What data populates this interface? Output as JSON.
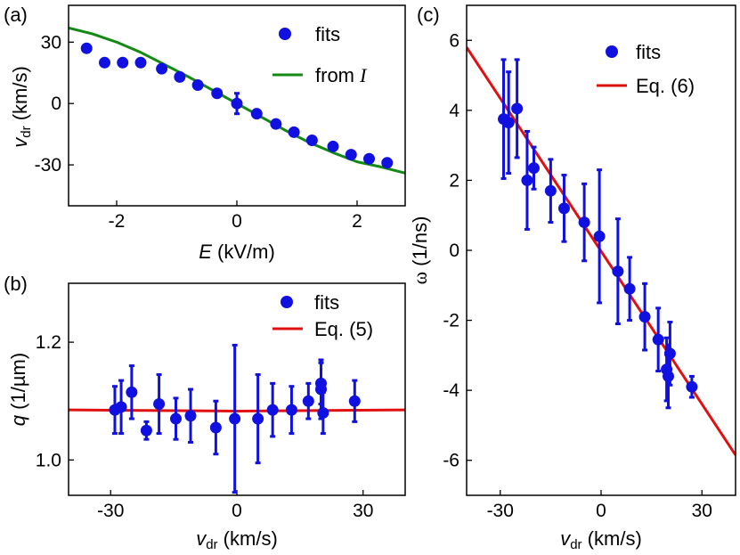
{
  "chart_data": [
    {
      "panel": "(a)",
      "type": "scatter",
      "xlabel_var": "E",
      "xlabel_unit": " (kV/m)",
      "ylabel_var": "v",
      "ylabel_sub": "dr",
      "ylabel_unit": " (km/s)",
      "xlim": [
        -2.8,
        2.8
      ],
      "ylim": [
        -50,
        48
      ],
      "xticks": [
        -2,
        0,
        2
      ],
      "yticks": [
        -30,
        0,
        30
      ],
      "series": [
        {
          "name": "fits",
          "kind": "points",
          "color": "#1010e0",
          "x": [
            -2.5,
            -2.2,
            -1.9,
            -1.6,
            -1.25,
            -0.95,
            -0.65,
            -0.33,
            0,
            0.33,
            0.65,
            0.95,
            1.25,
            1.6,
            1.9,
            2.2,
            2.5
          ],
          "y": [
            27,
            20,
            20,
            20,
            17,
            13,
            9,
            5,
            0,
            -5,
            -10,
            -14,
            -18,
            -21,
            -25,
            -27,
            -29
          ],
          "yerr": [
            0,
            0,
            0,
            0,
            0,
            0,
            0,
            0,
            5,
            0,
            0,
            0,
            0,
            0,
            0,
            0,
            0
          ]
        },
        {
          "name": "from ",
          "name_italic": "I",
          "kind": "line",
          "color": "#138a13",
          "x": [
            -2.8,
            -2.4,
            -2.0,
            -1.6,
            -1.2,
            -0.8,
            -0.4,
            0,
            0.4,
            0.8,
            1.2,
            1.6,
            2.0,
            2.4,
            2.8
          ],
          "y": [
            37,
            34,
            30,
            25,
            19,
            13,
            6.5,
            0,
            -6.5,
            -13,
            -19,
            -24,
            -28.5,
            -31,
            -34
          ]
        }
      ]
    },
    {
      "panel": "(b)",
      "type": "scatter",
      "xlabel_var": "v",
      "xlabel_sub": "dr",
      "xlabel_unit": " (km/s)",
      "ylabel_var": "q",
      "ylabel_unit": " (1/µm)",
      "xlim": [
        -40,
        40
      ],
      "ylim": [
        0.94,
        1.3
      ],
      "xticks": [
        -30,
        0,
        30
      ],
      "yticks": [
        1.0,
        1.2
      ],
      "ytick_labels": [
        "1.0",
        "1.2"
      ],
      "series": [
        {
          "name": "fits",
          "kind": "points",
          "color": "#1010e0",
          "x": [
            -29,
            -27.5,
            -25,
            -21.5,
            -18.5,
            -14.5,
            -11,
            -5,
            -0.5,
            5,
            8.5,
            13,
            17,
            20,
            20,
            20.5,
            28
          ],
          "y": [
            1.085,
            1.09,
            1.115,
            1.05,
            1.095,
            1.07,
            1.075,
            1.055,
            1.07,
            1.07,
            1.085,
            1.085,
            1.1,
            1.12,
            1.13,
            1.08,
            1.1
          ],
          "yerr": [
            0.04,
            0.045,
            0.045,
            0.015,
            0.05,
            0.035,
            0.045,
            0.045,
            0.125,
            0.075,
            0.045,
            0.04,
            0.03,
            0.05,
            0.035,
            0.035,
            0.035
          ]
        },
        {
          "name": "Eq. (5)",
          "kind": "line",
          "color": "#e01010",
          "x": [
            -40,
            0,
            40
          ],
          "y": [
            1.085,
            1.083,
            1.085
          ]
        }
      ]
    },
    {
      "panel": "(c)",
      "type": "scatter",
      "xlabel_var": "v",
      "xlabel_sub": "dr",
      "xlabel_unit": " (km/s)",
      "ylabel_var": "ω",
      "ylabel_unit": " (1/ns)",
      "xlim": [
        -40,
        40
      ],
      "ylim": [
        -7,
        7
      ],
      "xticks": [
        -30,
        0,
        30
      ],
      "yticks": [
        -6,
        -4,
        -2,
        0,
        2,
        4,
        6
      ],
      "series": [
        {
          "name": "fits",
          "kind": "points",
          "color": "#1010e0",
          "x": [
            -29,
            -27.5,
            -25,
            -22,
            -20,
            -15,
            -11,
            -5,
            -0.5,
            5,
            8.5,
            13,
            17,
            19.5,
            20,
            20.5,
            27
          ],
          "y": [
            3.75,
            3.65,
            4.05,
            2.0,
            2.35,
            1.7,
            1.2,
            0.8,
            0.4,
            -0.6,
            -1.1,
            -1.9,
            -2.55,
            -3.4,
            -3.6,
            -2.95,
            -3.9
          ],
          "yerr": [
            1.7,
            1.45,
            1.4,
            1.4,
            0.6,
            0.9,
            0.95,
            1.1,
            1.9,
            1.5,
            0.9,
            0.95,
            0.9,
            0.9,
            0.9,
            0.9,
            0.3
          ]
        },
        {
          "name": "Eq. (6)",
          "kind": "line",
          "color": "#e01010",
          "x": [
            -40,
            40
          ],
          "y": [
            5.8,
            -5.85
          ]
        }
      ]
    }
  ]
}
